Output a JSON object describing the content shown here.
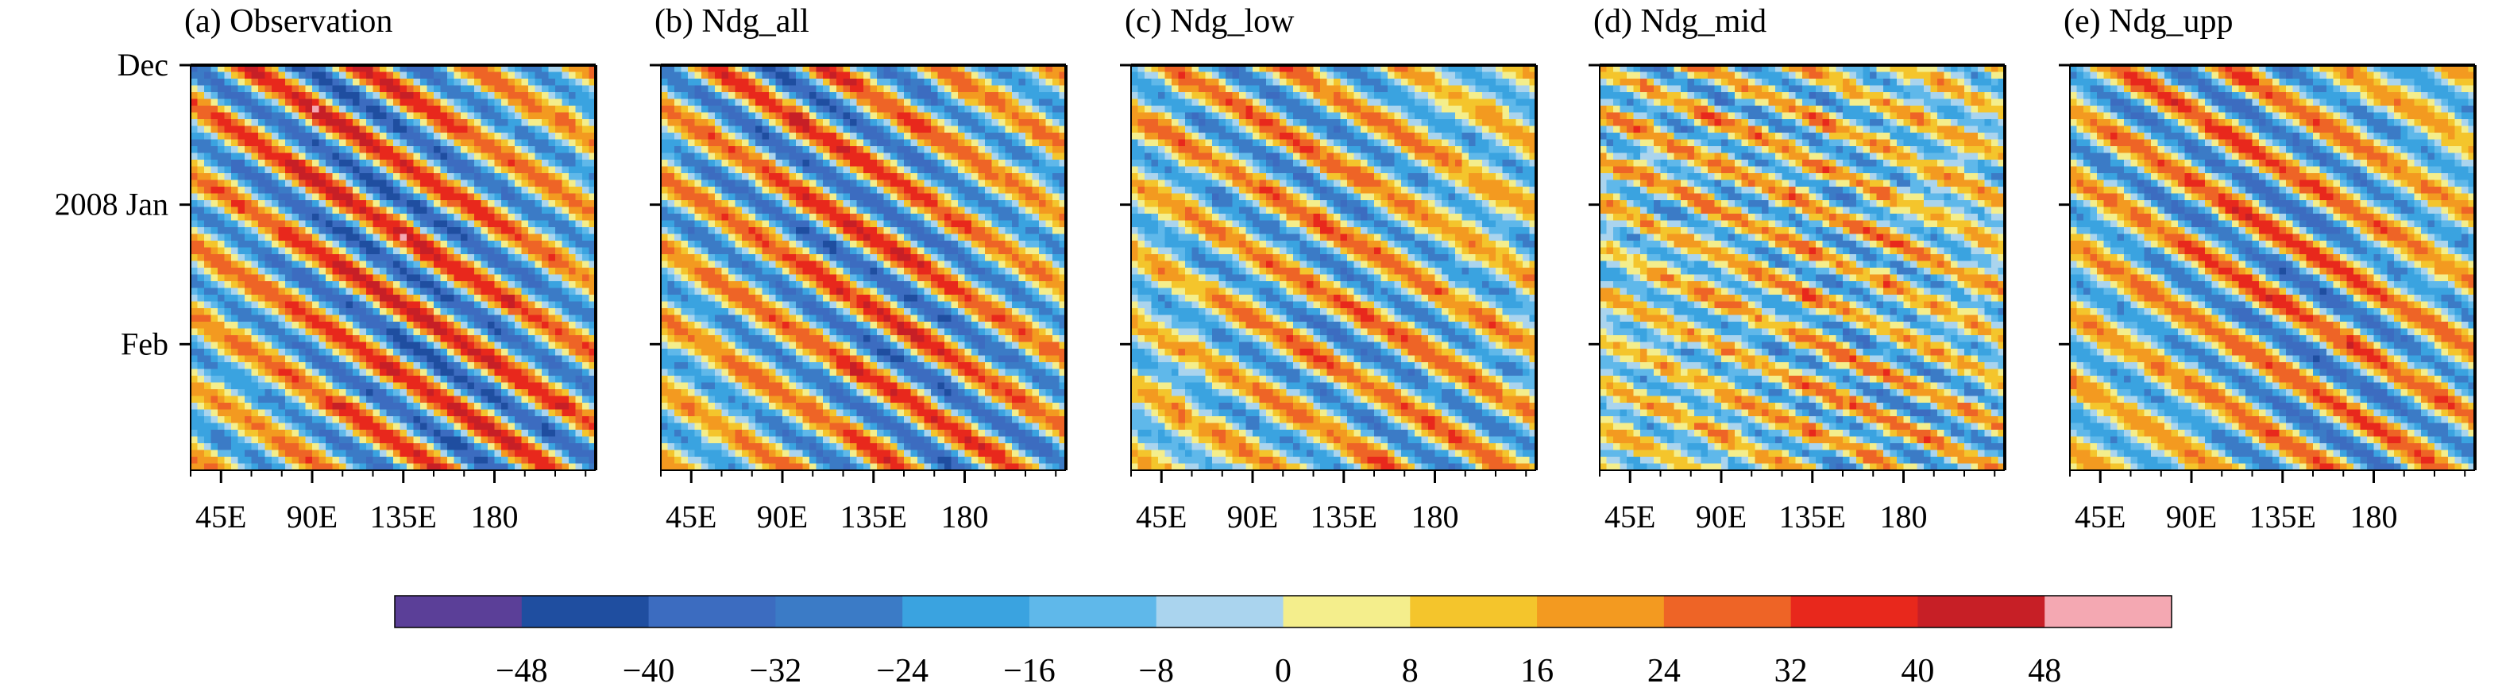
{
  "chart_data": [
    {
      "type": "heatmap",
      "title": "(a) Observation",
      "x_ticks": [
        "45E",
        "90E",
        "135E",
        "180"
      ],
      "x_tick_values": [
        45,
        90,
        135,
        180
      ],
      "x_range": [
        30,
        230
      ],
      "y_ticks": [
        "Dec",
        "2008 Jan",
        "Feb"
      ],
      "y_tick_values": [
        0,
        31,
        62
      ],
      "y_range": [
        0,
        90
      ],
      "field": {
        "slope": 0.28,
        "wavelength": 56,
        "phase": 0.0,
        "amp": 44,
        "noise": 0.12,
        "seed": 11
      }
    },
    {
      "type": "heatmap",
      "title": "(b) Ndg_all",
      "x_ticks": [
        "45E",
        "90E",
        "135E",
        "180"
      ],
      "x_tick_values": [
        45,
        90,
        135,
        180
      ],
      "x_range": [
        30,
        230
      ],
      "y_ticks": [],
      "y_tick_values": [
        0,
        31,
        62
      ],
      "y_range": [
        0,
        90
      ],
      "field": {
        "slope": 0.28,
        "wavelength": 56,
        "phase": 0.1,
        "amp": 40,
        "noise": 0.14,
        "seed": 23
      }
    },
    {
      "type": "heatmap",
      "title": "(c) Ndg_low",
      "x_ticks": [
        "45E",
        "90E",
        "135E",
        "180"
      ],
      "x_tick_values": [
        45,
        90,
        135,
        180
      ],
      "x_range": [
        30,
        230
      ],
      "y_ticks": [],
      "y_tick_values": [
        0,
        31,
        62
      ],
      "y_range": [
        0,
        90
      ],
      "field": {
        "slope": 0.26,
        "wavelength": 58,
        "phase": 0.4,
        "amp": 32,
        "noise": 0.22,
        "seed": 37
      }
    },
    {
      "type": "heatmap",
      "title": "(d) Ndg_mid",
      "x_ticks": [
        "45E",
        "90E",
        "135E",
        "180"
      ],
      "x_tick_values": [
        45,
        90,
        135,
        180
      ],
      "x_range": [
        30,
        230
      ],
      "y_ticks": [],
      "y_tick_values": [
        0,
        31,
        62
      ],
      "y_range": [
        0,
        90
      ],
      "field": {
        "slope": 0.2,
        "wavelength": 50,
        "phase": 0.9,
        "amp": 28,
        "noise": 0.35,
        "seed": 53
      }
    },
    {
      "type": "heatmap",
      "title": "(e) Ndg_upp",
      "x_ticks": [
        "45E",
        "90E",
        "135E",
        "180"
      ],
      "x_tick_values": [
        45,
        90,
        135,
        180
      ],
      "x_range": [
        30,
        230
      ],
      "y_ticks": [],
      "y_tick_values": [
        0,
        31,
        62
      ],
      "y_range": [
        0,
        90
      ],
      "field": {
        "slope": 0.27,
        "wavelength": 56,
        "phase": 0.2,
        "amp": 36,
        "noise": 0.16,
        "seed": 71
      }
    }
  ],
  "colorbar": {
    "levels": [
      -56,
      -48,
      -40,
      -32,
      -24,
      -16,
      -8,
      0,
      8,
      16,
      24,
      32,
      40,
      48,
      56
    ],
    "labels": [
      "−48",
      "−40",
      "−32",
      "−24",
      "−16",
      "−8",
      "0",
      "8",
      "16",
      "24",
      "32",
      "40",
      "48"
    ],
    "colors": [
      "#5b3f98",
      "#1f4ea0",
      "#3c6cc0",
      "#3b7bc6",
      "#3aa3e0",
      "#5fb8ea",
      "#aad4ee",
      "#f4ee8c",
      "#f4c52c",
      "#f39a20",
      "#ee6426",
      "#e8281c",
      "#c71f26",
      "#f4a8b2"
    ]
  }
}
